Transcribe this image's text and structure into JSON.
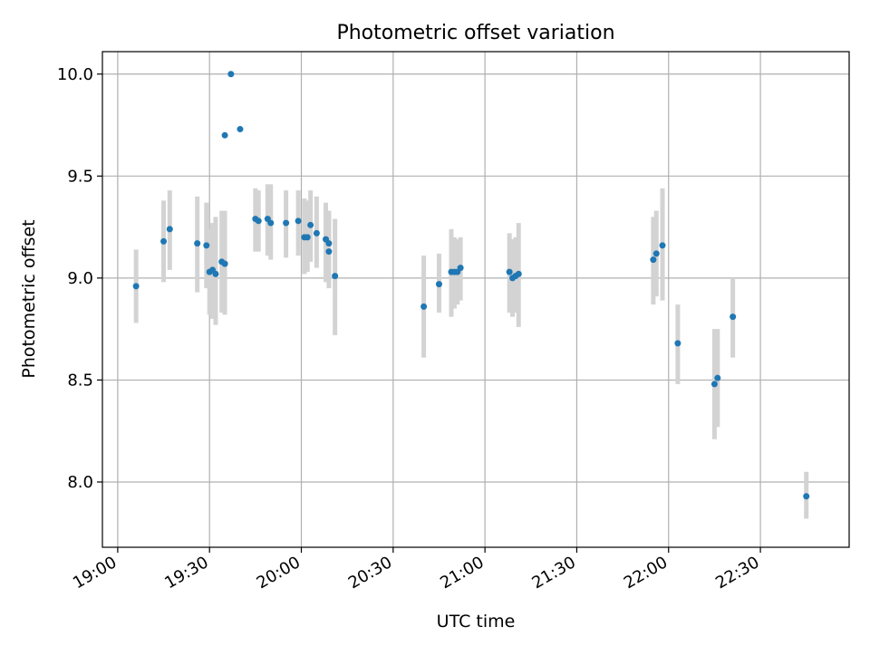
{
  "chart_data": {
    "type": "scatter",
    "title": "Photometric offset variation",
    "xlabel": "UTC time",
    "ylabel": "Photometric offset",
    "grid": true,
    "xlim": [
      "18:55",
      "22:59"
    ],
    "ylim": [
      7.68,
      10.11
    ],
    "xticks": [
      "19:00",
      "19:30",
      "20:00",
      "20:30",
      "21:00",
      "21:30",
      "22:00",
      "22:30"
    ],
    "yticks": [
      "8.0",
      "8.5",
      "9.0",
      "9.5",
      "10.0"
    ],
    "colors": {
      "point": "#1f77b4",
      "errorbar": "#d3d3d3",
      "grid": "#b0b0b0"
    },
    "points": [
      {
        "t": "19:06",
        "y": 8.96,
        "lo": 8.78,
        "hi": 9.14
      },
      {
        "t": "19:15",
        "y": 9.18,
        "lo": 8.98,
        "hi": 9.38
      },
      {
        "t": "19:17",
        "y": 9.24,
        "lo": 9.04,
        "hi": 9.43
      },
      {
        "t": "19:26",
        "y": 9.17,
        "lo": 8.93,
        "hi": 9.4
      },
      {
        "t": "19:29",
        "y": 9.16,
        "lo": 8.95,
        "hi": 9.37
      },
      {
        "t": "19:30",
        "y": 9.03,
        "lo": 8.82,
        "hi": 9.24
      },
      {
        "t": "19:31",
        "y": 9.04,
        "lo": 8.8,
        "hi": 9.27
      },
      {
        "t": "19:32",
        "y": 9.02,
        "lo": 8.77,
        "hi": 9.3
      },
      {
        "t": "19:34",
        "y": 9.08,
        "lo": 8.83,
        "hi": 9.33
      },
      {
        "t": "19:35",
        "y": 9.07,
        "lo": 8.82,
        "hi": 9.33
      },
      {
        "t": "19:35",
        "y": 9.7
      },
      {
        "t": "19:37",
        "y": 10.0
      },
      {
        "t": "19:40",
        "y": 9.73
      },
      {
        "t": "19:45",
        "y": 9.29,
        "lo": 9.13,
        "hi": 9.44
      },
      {
        "t": "19:46",
        "y": 9.28,
        "lo": 9.13,
        "hi": 9.43
      },
      {
        "t": "19:49",
        "y": 9.29,
        "lo": 9.11,
        "hi": 9.46
      },
      {
        "t": "19:50",
        "y": 9.27,
        "lo": 9.09,
        "hi": 9.46
      },
      {
        "t": "19:55",
        "y": 9.27,
        "lo": 9.1,
        "hi": 9.43
      },
      {
        "t": "19:59",
        "y": 9.28,
        "lo": 9.11,
        "hi": 9.43
      },
      {
        "t": "20:01",
        "y": 9.2,
        "lo": 9.02,
        "hi": 9.39
      },
      {
        "t": "20:02",
        "y": 9.2,
        "lo": 9.03,
        "hi": 9.38
      },
      {
        "t": "20:03",
        "y": 9.26,
        "lo": 9.08,
        "hi": 9.43
      },
      {
        "t": "20:05",
        "y": 9.22,
        "lo": 9.05,
        "hi": 9.4
      },
      {
        "t": "20:08",
        "y": 9.19,
        "lo": 8.98,
        "hi": 9.37
      },
      {
        "t": "20:09",
        "y": 9.17,
        "lo": 8.97,
        "hi": 9.33
      },
      {
        "t": "20:09",
        "y": 9.13,
        "lo": 8.95,
        "hi": 9.31
      },
      {
        "t": "20:11",
        "y": 9.01,
        "lo": 8.72,
        "hi": 9.29
      },
      {
        "t": "20:40",
        "y": 8.86,
        "lo": 8.61,
        "hi": 9.11
      },
      {
        "t": "20:45",
        "y": 8.97,
        "lo": 8.83,
        "hi": 9.12
      },
      {
        "t": "20:49",
        "y": 9.03,
        "lo": 8.81,
        "hi": 9.24
      },
      {
        "t": "20:50",
        "y": 9.03,
        "lo": 8.85,
        "hi": 9.2
      },
      {
        "t": "20:51",
        "y": 9.03,
        "lo": 8.87,
        "hi": 9.19
      },
      {
        "t": "20:52",
        "y": 9.05,
        "lo": 8.89,
        "hi": 9.2
      },
      {
        "t": "21:08",
        "y": 9.03,
        "lo": 8.83,
        "hi": 9.22
      },
      {
        "t": "21:09",
        "y": 9.0,
        "lo": 8.81,
        "hi": 9.19
      },
      {
        "t": "21:10",
        "y": 9.01,
        "lo": 8.83,
        "hi": 9.2
      },
      {
        "t": "21:11",
        "y": 9.02,
        "lo": 8.76,
        "hi": 9.27
      },
      {
        "t": "21:55",
        "y": 9.09,
        "lo": 8.87,
        "hi": 9.3
      },
      {
        "t": "21:56",
        "y": 9.12,
        "lo": 8.91,
        "hi": 9.33
      },
      {
        "t": "21:58",
        "y": 9.16,
        "lo": 8.89,
        "hi": 9.44
      },
      {
        "t": "22:03",
        "y": 8.68,
        "lo": 8.48,
        "hi": 8.87
      },
      {
        "t": "22:15",
        "y": 8.48,
        "lo": 8.21,
        "hi": 8.75
      },
      {
        "t": "22:16",
        "y": 8.51,
        "lo": 8.27,
        "hi": 8.75
      },
      {
        "t": "22:21",
        "y": 8.81,
        "lo": 8.61,
        "hi": 9.0
      },
      {
        "t": "22:45",
        "y": 7.93,
        "lo": 7.82,
        "hi": 8.05
      }
    ]
  }
}
